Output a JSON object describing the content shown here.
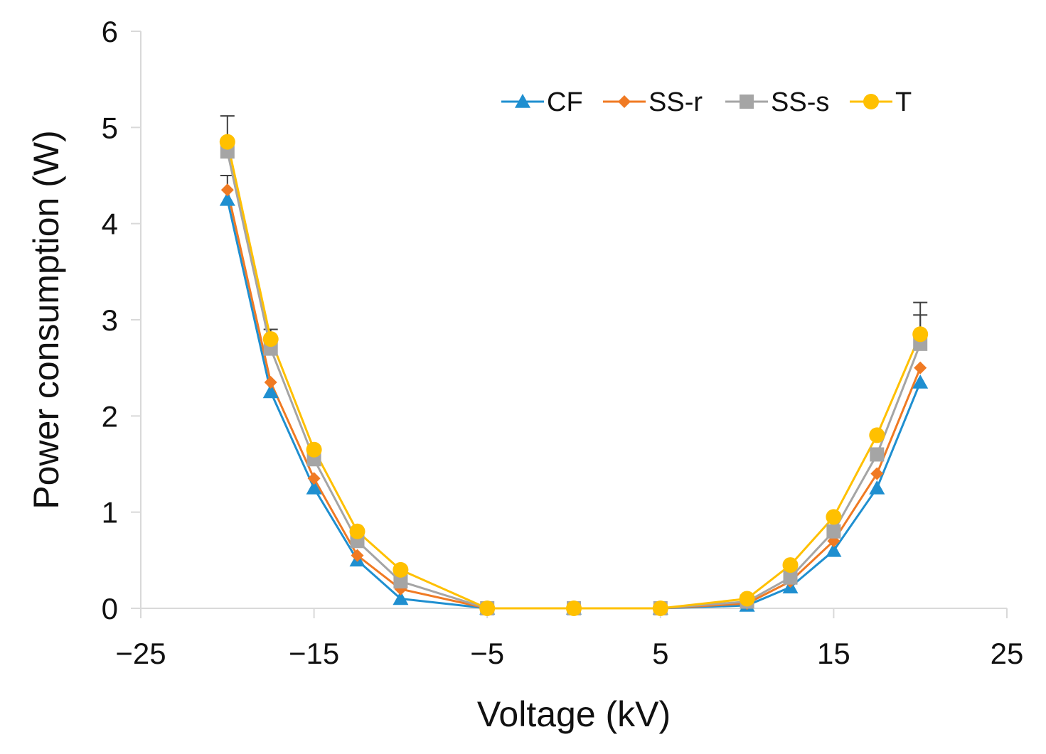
{
  "chart_data": {
    "type": "line",
    "title": "",
    "xlabel": "Voltage (kV)",
    "ylabel": "Power consumption (W)",
    "xlim": [
      -25,
      25
    ],
    "ylim": [
      0,
      6
    ],
    "x_ticks": [
      -25,
      -15,
      -5,
      5,
      15,
      25
    ],
    "x_tick_labels": [
      "−25",
      "−15",
      "−5",
      "5",
      "15",
      "25"
    ],
    "y_ticks": [
      0,
      1,
      2,
      3,
      4,
      5,
      6
    ],
    "y_tick_labels": [
      "0",
      "1",
      "2",
      "3",
      "4",
      "5",
      "6"
    ],
    "grid": false,
    "legend_position": "top-right",
    "x": [
      -20,
      -17.5,
      -15,
      -12.5,
      -10,
      -5,
      0,
      5,
      10,
      12.5,
      15,
      17.5,
      20
    ],
    "series": [
      {
        "name": "CF",
        "color": "#1f8fd0",
        "marker": "triangle",
        "values": [
          4.25,
          2.25,
          1.25,
          0.5,
          0.1,
          0,
          0,
          0,
          0.03,
          0.22,
          0.6,
          1.25,
          2.35
        ]
      },
      {
        "name": "SS-r",
        "color": "#f07a23",
        "marker": "diamond",
        "values": [
          4.35,
          2.35,
          1.35,
          0.55,
          0.2,
          0,
          0,
          0,
          0.05,
          0.28,
          0.7,
          1.4,
          2.5
        ]
      },
      {
        "name": "SS-s",
        "color": "#a5a5a5",
        "marker": "square",
        "values": [
          4.75,
          2.7,
          1.55,
          0.7,
          0.28,
          0,
          0,
          0,
          0.07,
          0.32,
          0.8,
          1.6,
          2.75
        ]
      },
      {
        "name": "T",
        "color": "#ffc000",
        "marker": "circle",
        "values": [
          4.85,
          2.8,
          1.65,
          0.8,
          0.4,
          0,
          0,
          0,
          0.1,
          0.45,
          0.95,
          1.8,
          2.85
        ]
      }
    ],
    "error_bars": [
      {
        "x": -20,
        "y": 4.85,
        "upper": 5.12
      },
      {
        "x": -20,
        "y": 4.35,
        "upper": 4.5
      },
      {
        "x": -17.5,
        "y": 2.8,
        "upper": 2.9
      },
      {
        "x": 20,
        "y": 2.85,
        "upper": 3.18
      },
      {
        "x": 20,
        "y": 2.75,
        "upper": 3.05
      }
    ],
    "axis_color": "#d9d9d9",
    "error_bar_color": "#404040"
  }
}
